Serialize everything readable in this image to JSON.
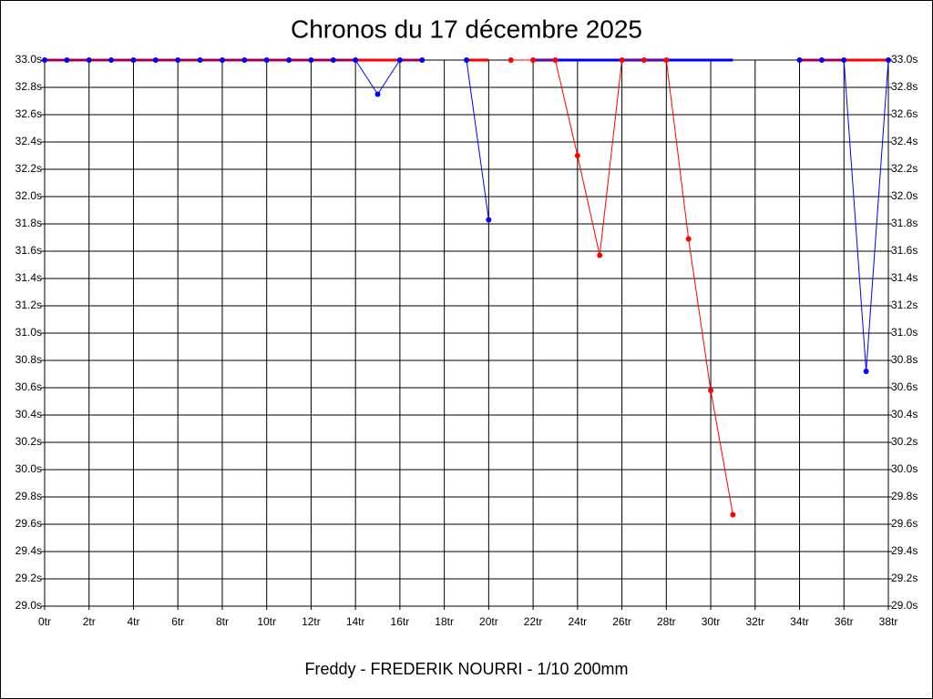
{
  "chart_data": {
    "type": "line",
    "title": "Chronos du 17 décembre 2025",
    "footer": "Freddy - FREDERIK NOURRI - 1/10 200mm",
    "x": [
      0,
      1,
      2,
      3,
      4,
      5,
      6,
      7,
      8,
      9,
      10,
      11,
      12,
      13,
      14,
      15,
      16,
      17,
      18,
      19,
      20,
      21,
      22,
      23,
      24,
      25,
      26,
      27,
      28,
      29,
      30,
      31,
      32,
      33,
      34,
      35,
      36,
      37,
      38
    ],
    "xlim": [
      0,
      38
    ],
    "xticks": [
      {
        "value": 0,
        "label": "0tr"
      },
      {
        "value": 2,
        "label": "2tr"
      },
      {
        "value": 4,
        "label": "4tr"
      },
      {
        "value": 6,
        "label": "6tr"
      },
      {
        "value": 8,
        "label": "8tr"
      },
      {
        "value": 10,
        "label": "10tr"
      },
      {
        "value": 12,
        "label": "12tr"
      },
      {
        "value": 14,
        "label": "14tr"
      },
      {
        "value": 16,
        "label": "16tr"
      },
      {
        "value": 18,
        "label": "18tr"
      },
      {
        "value": 20,
        "label": "20tr"
      },
      {
        "value": 22,
        "label": "22tr"
      },
      {
        "value": 24,
        "label": "24tr"
      },
      {
        "value": 26,
        "label": "26tr"
      },
      {
        "value": 28,
        "label": "28tr"
      },
      {
        "value": 30,
        "label": "30tr"
      },
      {
        "value": 32,
        "label": "32tr"
      },
      {
        "value": 34,
        "label": "34tr"
      },
      {
        "value": 36,
        "label": "36tr"
      },
      {
        "value": 38,
        "label": "38tr"
      }
    ],
    "ylim": [
      29.0,
      33.0
    ],
    "yticks": [
      {
        "value": 29.0,
        "label": "29.0s"
      },
      {
        "value": 29.2,
        "label": "29.2s"
      },
      {
        "value": 29.4,
        "label": "29.4s"
      },
      {
        "value": 29.6,
        "label": "29.6s"
      },
      {
        "value": 29.8,
        "label": "29.8s"
      },
      {
        "value": 30.0,
        "label": "30.0s"
      },
      {
        "value": 30.2,
        "label": "30.2s"
      },
      {
        "value": 30.4,
        "label": "30.4s"
      },
      {
        "value": 30.6,
        "label": "30.6s"
      },
      {
        "value": 30.8,
        "label": "30.8s"
      },
      {
        "value": 31.0,
        "label": "31.0s"
      },
      {
        "value": 31.2,
        "label": "31.2s"
      },
      {
        "value": 31.4,
        "label": "31.4s"
      },
      {
        "value": 31.6,
        "label": "31.6s"
      },
      {
        "value": 31.8,
        "label": "31.8s"
      },
      {
        "value": 32.0,
        "label": "32.0s"
      },
      {
        "value": 32.2,
        "label": "32.2s"
      },
      {
        "value": 32.4,
        "label": "32.4s"
      },
      {
        "value": 32.6,
        "label": "32.6s"
      },
      {
        "value": 32.8,
        "label": "32.8s"
      },
      {
        "value": 33.0,
        "label": "33.0s"
      }
    ],
    "grid": true,
    "series": [
      {
        "color": "#ff0000",
        "width": 3,
        "markers": false,
        "values": [
          33,
          33,
          33,
          33,
          33,
          33,
          33,
          33,
          33,
          33,
          33,
          33,
          33,
          33,
          33,
          33,
          33,
          33,
          null,
          33,
          33,
          null,
          null,
          null,
          null,
          null,
          null,
          null,
          null,
          null,
          null,
          null,
          null,
          null,
          33,
          33,
          33,
          33,
          33
        ]
      },
      {
        "color": "#0000ff",
        "width": 3,
        "markers": false,
        "values": [
          null,
          null,
          null,
          null,
          null,
          null,
          null,
          null,
          null,
          null,
          null,
          null,
          null,
          null,
          null,
          null,
          null,
          null,
          null,
          null,
          null,
          null,
          33,
          33,
          33,
          33,
          33,
          33,
          33,
          33,
          33,
          33,
          null,
          null,
          null,
          null,
          null,
          null,
          null
        ]
      },
      {
        "color": "#0000ff",
        "width": 1,
        "markers": true,
        "values": [
          33,
          33,
          33,
          33,
          33,
          33,
          33,
          33,
          33,
          33,
          33,
          33,
          33,
          33,
          33,
          32.75,
          33,
          33,
          null,
          33,
          31.83,
          null,
          null,
          null,
          null,
          null,
          null,
          null,
          null,
          null,
          null,
          null,
          null,
          null,
          33,
          33,
          33,
          30.72,
          33
        ]
      },
      {
        "color": "#ff0000",
        "width": 1,
        "markers": true,
        "values": [
          null,
          null,
          null,
          null,
          null,
          null,
          null,
          null,
          null,
          null,
          null,
          null,
          null,
          null,
          null,
          null,
          null,
          null,
          null,
          null,
          null,
          33,
          33,
          33,
          32.3,
          31.57,
          33,
          33,
          33,
          31.69,
          30.58,
          29.67,
          null,
          null,
          null,
          null,
          null,
          null,
          null
        ]
      }
    ]
  }
}
